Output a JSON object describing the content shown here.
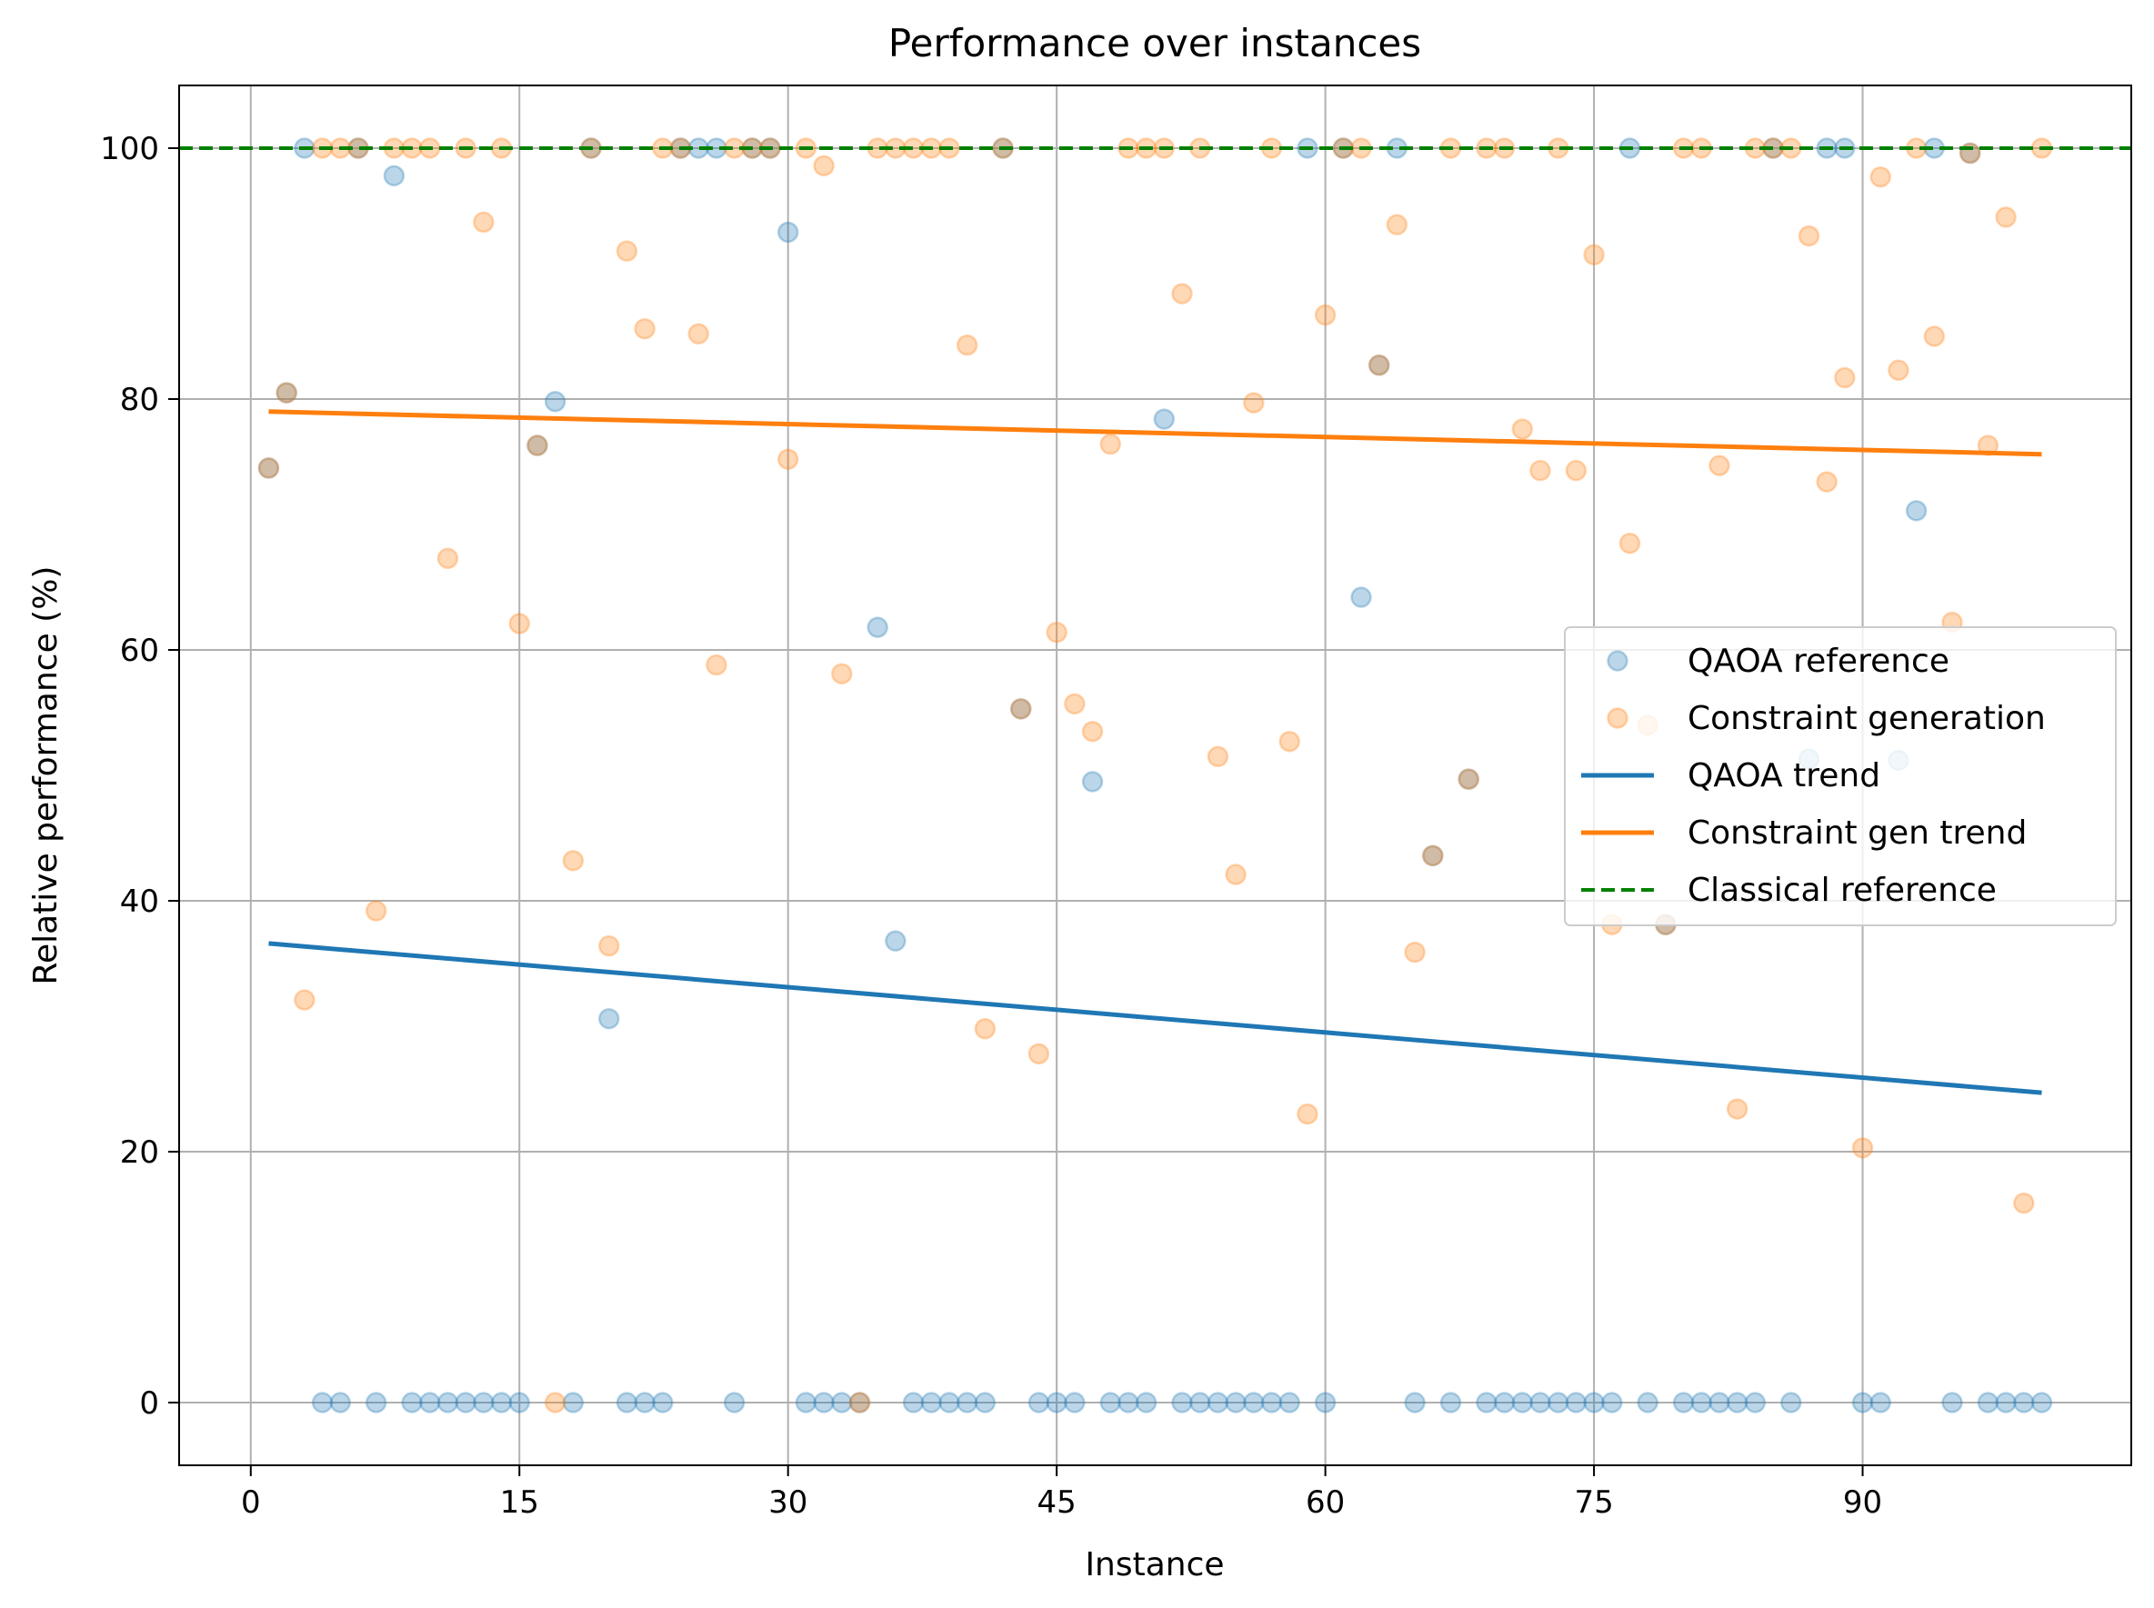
{
  "chart_data": {
    "type": "scatter",
    "title": "Performance over instances",
    "xlabel": "Instance",
    "ylabel": "Relative performance (%)",
    "xlim": [
      -4,
      105
    ],
    "ylim": [
      -5,
      105
    ],
    "xticks": [
      0,
      15,
      30,
      45,
      60,
      75,
      90
    ],
    "yticks": [
      0,
      20,
      40,
      60,
      80,
      100
    ],
    "grid": true,
    "legend_position": "center-right",
    "series": [
      {
        "name": "QAOA reference",
        "kind": "scatter",
        "color": "#1f77b4",
        "points": [
          [
            1,
            74.5
          ],
          [
            2,
            80.5
          ],
          [
            3,
            100
          ],
          [
            4,
            0
          ],
          [
            5,
            0
          ],
          [
            6,
            100
          ],
          [
            7,
            0
          ],
          [
            8,
            97.8
          ],
          [
            9,
            0
          ],
          [
            10,
            0
          ],
          [
            11,
            0
          ],
          [
            12,
            0
          ],
          [
            13,
            0
          ],
          [
            14,
            0
          ],
          [
            15,
            0
          ],
          [
            16,
            76.3
          ],
          [
            17,
            79.8
          ],
          [
            18,
            0
          ],
          [
            19,
            100
          ],
          [
            20,
            30.6
          ],
          [
            21,
            0
          ],
          [
            22,
            0
          ],
          [
            23,
            0
          ],
          [
            24,
            100
          ],
          [
            25,
            100
          ],
          [
            26,
            100
          ],
          [
            27,
            0
          ],
          [
            28,
            100
          ],
          [
            29,
            100
          ],
          [
            30,
            93.3
          ],
          [
            31,
            0
          ],
          [
            32,
            0
          ],
          [
            33,
            0
          ],
          [
            34,
            0
          ],
          [
            35,
            61.8
          ],
          [
            36,
            36.8
          ],
          [
            37,
            0
          ],
          [
            38,
            0
          ],
          [
            39,
            0
          ],
          [
            40,
            0
          ],
          [
            41,
            0
          ],
          [
            42,
            100
          ],
          [
            43,
            55.3
          ],
          [
            44,
            0
          ],
          [
            45,
            0
          ],
          [
            46,
            0
          ],
          [
            47,
            49.5
          ],
          [
            48,
            0
          ],
          [
            49,
            0
          ],
          [
            50,
            0
          ],
          [
            51,
            78.4
          ],
          [
            52,
            0
          ],
          [
            53,
            0
          ],
          [
            54,
            0
          ],
          [
            55,
            0
          ],
          [
            56,
            0
          ],
          [
            57,
            0
          ],
          [
            58,
            0
          ],
          [
            59,
            100
          ],
          [
            60,
            0
          ],
          [
            61,
            100
          ],
          [
            62,
            64.2
          ],
          [
            63,
            82.7
          ],
          [
            64,
            100
          ],
          [
            65,
            0
          ],
          [
            66,
            43.6
          ],
          [
            67,
            0
          ],
          [
            68,
            49.7
          ],
          [
            69,
            0
          ],
          [
            70,
            0
          ],
          [
            71,
            0
          ],
          [
            72,
            0
          ],
          [
            73,
            0
          ],
          [
            74,
            0
          ],
          [
            75,
            0
          ],
          [
            76,
            0
          ],
          [
            77,
            100
          ],
          [
            78,
            0
          ],
          [
            79,
            38.1
          ],
          [
            80,
            0
          ],
          [
            81,
            0
          ],
          [
            82,
            0
          ],
          [
            83,
            0
          ],
          [
            84,
            0
          ],
          [
            85,
            100
          ],
          [
            86,
            0
          ],
          [
            87,
            51.3
          ],
          [
            88,
            100
          ],
          [
            89,
            100
          ],
          [
            90,
            0
          ],
          [
            91,
            0
          ],
          [
            92,
            51.2
          ],
          [
            93,
            71.1
          ],
          [
            94,
            100
          ],
          [
            95,
            0
          ],
          [
            96,
            99.6
          ],
          [
            97,
            0
          ],
          [
            98,
            0
          ],
          [
            99,
            0
          ],
          [
            100,
            0
          ]
        ]
      },
      {
        "name": "Constraint generation",
        "kind": "scatter",
        "color": "#ff7f0e",
        "points": [
          [
            1,
            74.5
          ],
          [
            2,
            80.5
          ],
          [
            3,
            32.1
          ],
          [
            4,
            100
          ],
          [
            5,
            100
          ],
          [
            6,
            100
          ],
          [
            7,
            39.2
          ],
          [
            8,
            100
          ],
          [
            9,
            100
          ],
          [
            10,
            100
          ],
          [
            11,
            67.3
          ],
          [
            12,
            100
          ],
          [
            13,
            94.1
          ],
          [
            14,
            100
          ],
          [
            15,
            62.1
          ],
          [
            16,
            76.3
          ],
          [
            17,
            0
          ],
          [
            18,
            43.2
          ],
          [
            19,
            100
          ],
          [
            20,
            36.4
          ],
          [
            21,
            91.8
          ],
          [
            22,
            85.6
          ],
          [
            23,
            100
          ],
          [
            24,
            100
          ],
          [
            25,
            85.2
          ],
          [
            26,
            58.8
          ],
          [
            27,
            100
          ],
          [
            28,
            100
          ],
          [
            29,
            100
          ],
          [
            30,
            75.2
          ],
          [
            31,
            100
          ],
          [
            32,
            98.6
          ],
          [
            33,
            58.1
          ],
          [
            34,
            0
          ],
          [
            35,
            100
          ],
          [
            36,
            100
          ],
          [
            37,
            100
          ],
          [
            38,
            100
          ],
          [
            39,
            100
          ],
          [
            40,
            84.3
          ],
          [
            41,
            29.8
          ],
          [
            42,
            100
          ],
          [
            43,
            55.3
          ],
          [
            44,
            27.8
          ],
          [
            45,
            61.4
          ],
          [
            46,
            55.7
          ],
          [
            47,
            53.5
          ],
          [
            48,
            76.4
          ],
          [
            49,
            100
          ],
          [
            50,
            100
          ],
          [
            51,
            100
          ],
          [
            52,
            88.4
          ],
          [
            53,
            100
          ],
          [
            54,
            51.5
          ],
          [
            55,
            42.1
          ],
          [
            56,
            79.7
          ],
          [
            57,
            100
          ],
          [
            58,
            52.7
          ],
          [
            59,
            23
          ],
          [
            60,
            86.7
          ],
          [
            61,
            100
          ],
          [
            62,
            100
          ],
          [
            63,
            82.7
          ],
          [
            64,
            93.9
          ],
          [
            65,
            35.9
          ],
          [
            66,
            43.6
          ],
          [
            67,
            100
          ],
          [
            68,
            49.7
          ],
          [
            69,
            100
          ],
          [
            70,
            100
          ],
          [
            71,
            77.6
          ],
          [
            72,
            74.3
          ],
          [
            73,
            100
          ],
          [
            74,
            74.3
          ],
          [
            75,
            91.5
          ],
          [
            76,
            38.1
          ],
          [
            77,
            68.5
          ],
          [
            78,
            54
          ],
          [
            79,
            38.1
          ],
          [
            80,
            100
          ],
          [
            81,
            100
          ],
          [
            82,
            74.7
          ],
          [
            83,
            23.4
          ],
          [
            84,
            100
          ],
          [
            85,
            100
          ],
          [
            86,
            100
          ],
          [
            87,
            93
          ],
          [
            88,
            73.4
          ],
          [
            89,
            81.7
          ],
          [
            90,
            20.3
          ],
          [
            91,
            97.7
          ],
          [
            92,
            82.3
          ],
          [
            93,
            100
          ],
          [
            94,
            85
          ],
          [
            95,
            62.2
          ],
          [
            96,
            99.6
          ],
          [
            97,
            76.3
          ],
          [
            98,
            94.5
          ],
          [
            99,
            15.9
          ],
          [
            100,
            100
          ]
        ]
      },
      {
        "name": "QAOA trend",
        "kind": "line",
        "color": "#1f77b4",
        "points": [
          [
            1,
            36.6
          ],
          [
            100,
            24.7
          ]
        ]
      },
      {
        "name": "Constraint gen trend",
        "kind": "line",
        "color": "#ff7f0e",
        "points": [
          [
            1,
            79
          ],
          [
            100,
            75.6
          ]
        ]
      },
      {
        "name": "Classical reference",
        "kind": "hline",
        "color": "#008000",
        "y": 100
      }
    ]
  }
}
